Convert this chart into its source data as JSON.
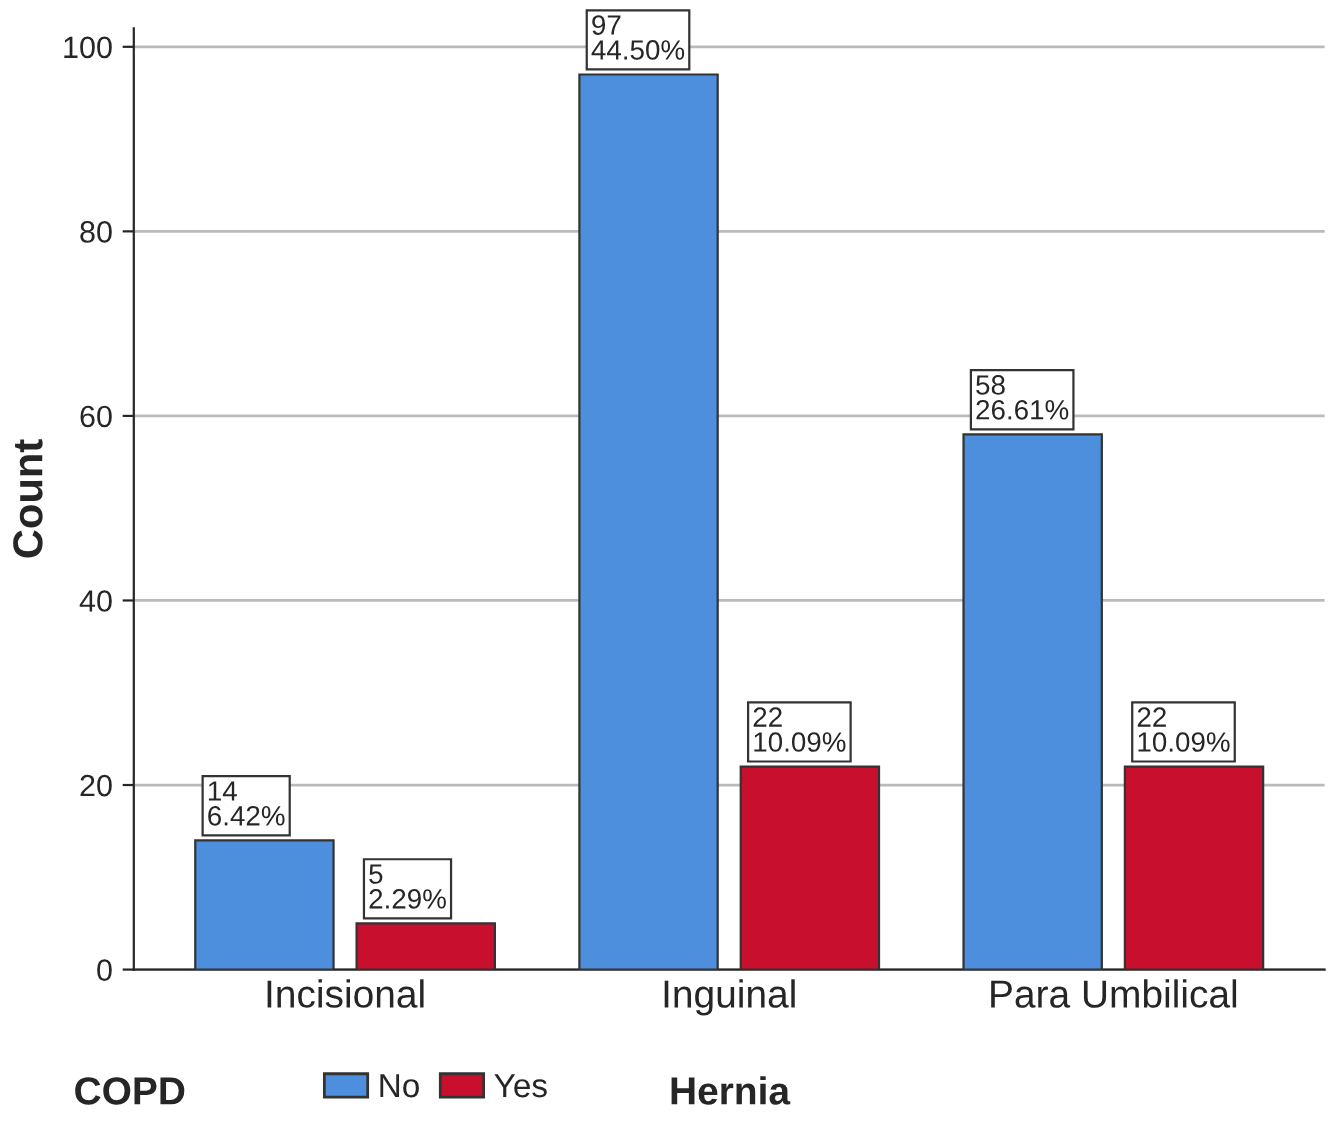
{
  "chart_data": {
    "type": "bar",
    "xlabel": "Hernia",
    "ylabel": "Count",
    "legend_title": "COPD",
    "categories": [
      "Incisional",
      "Inguinal",
      "Para Umbilical"
    ],
    "series": [
      {
        "name": "No",
        "color": "#4d8fdc",
        "values": [
          14,
          97,
          58
        ],
        "value_labels": [
          "14\n6.42%",
          "97\n44.50%",
          "58\n26.61%"
        ]
      },
      {
        "name": "Yes",
        "color": "#c8102e",
        "values": [
          5,
          22,
          22
        ],
        "value_labels": [
          "5\n2.29%",
          "22\n10.09%",
          "22\n10.09%"
        ]
      }
    ],
    "ylim": [
      0,
      102
    ],
    "yticks": [
      0,
      20,
      40,
      60,
      80,
      100
    ],
    "grid": "y",
    "legend": "bottom"
  }
}
